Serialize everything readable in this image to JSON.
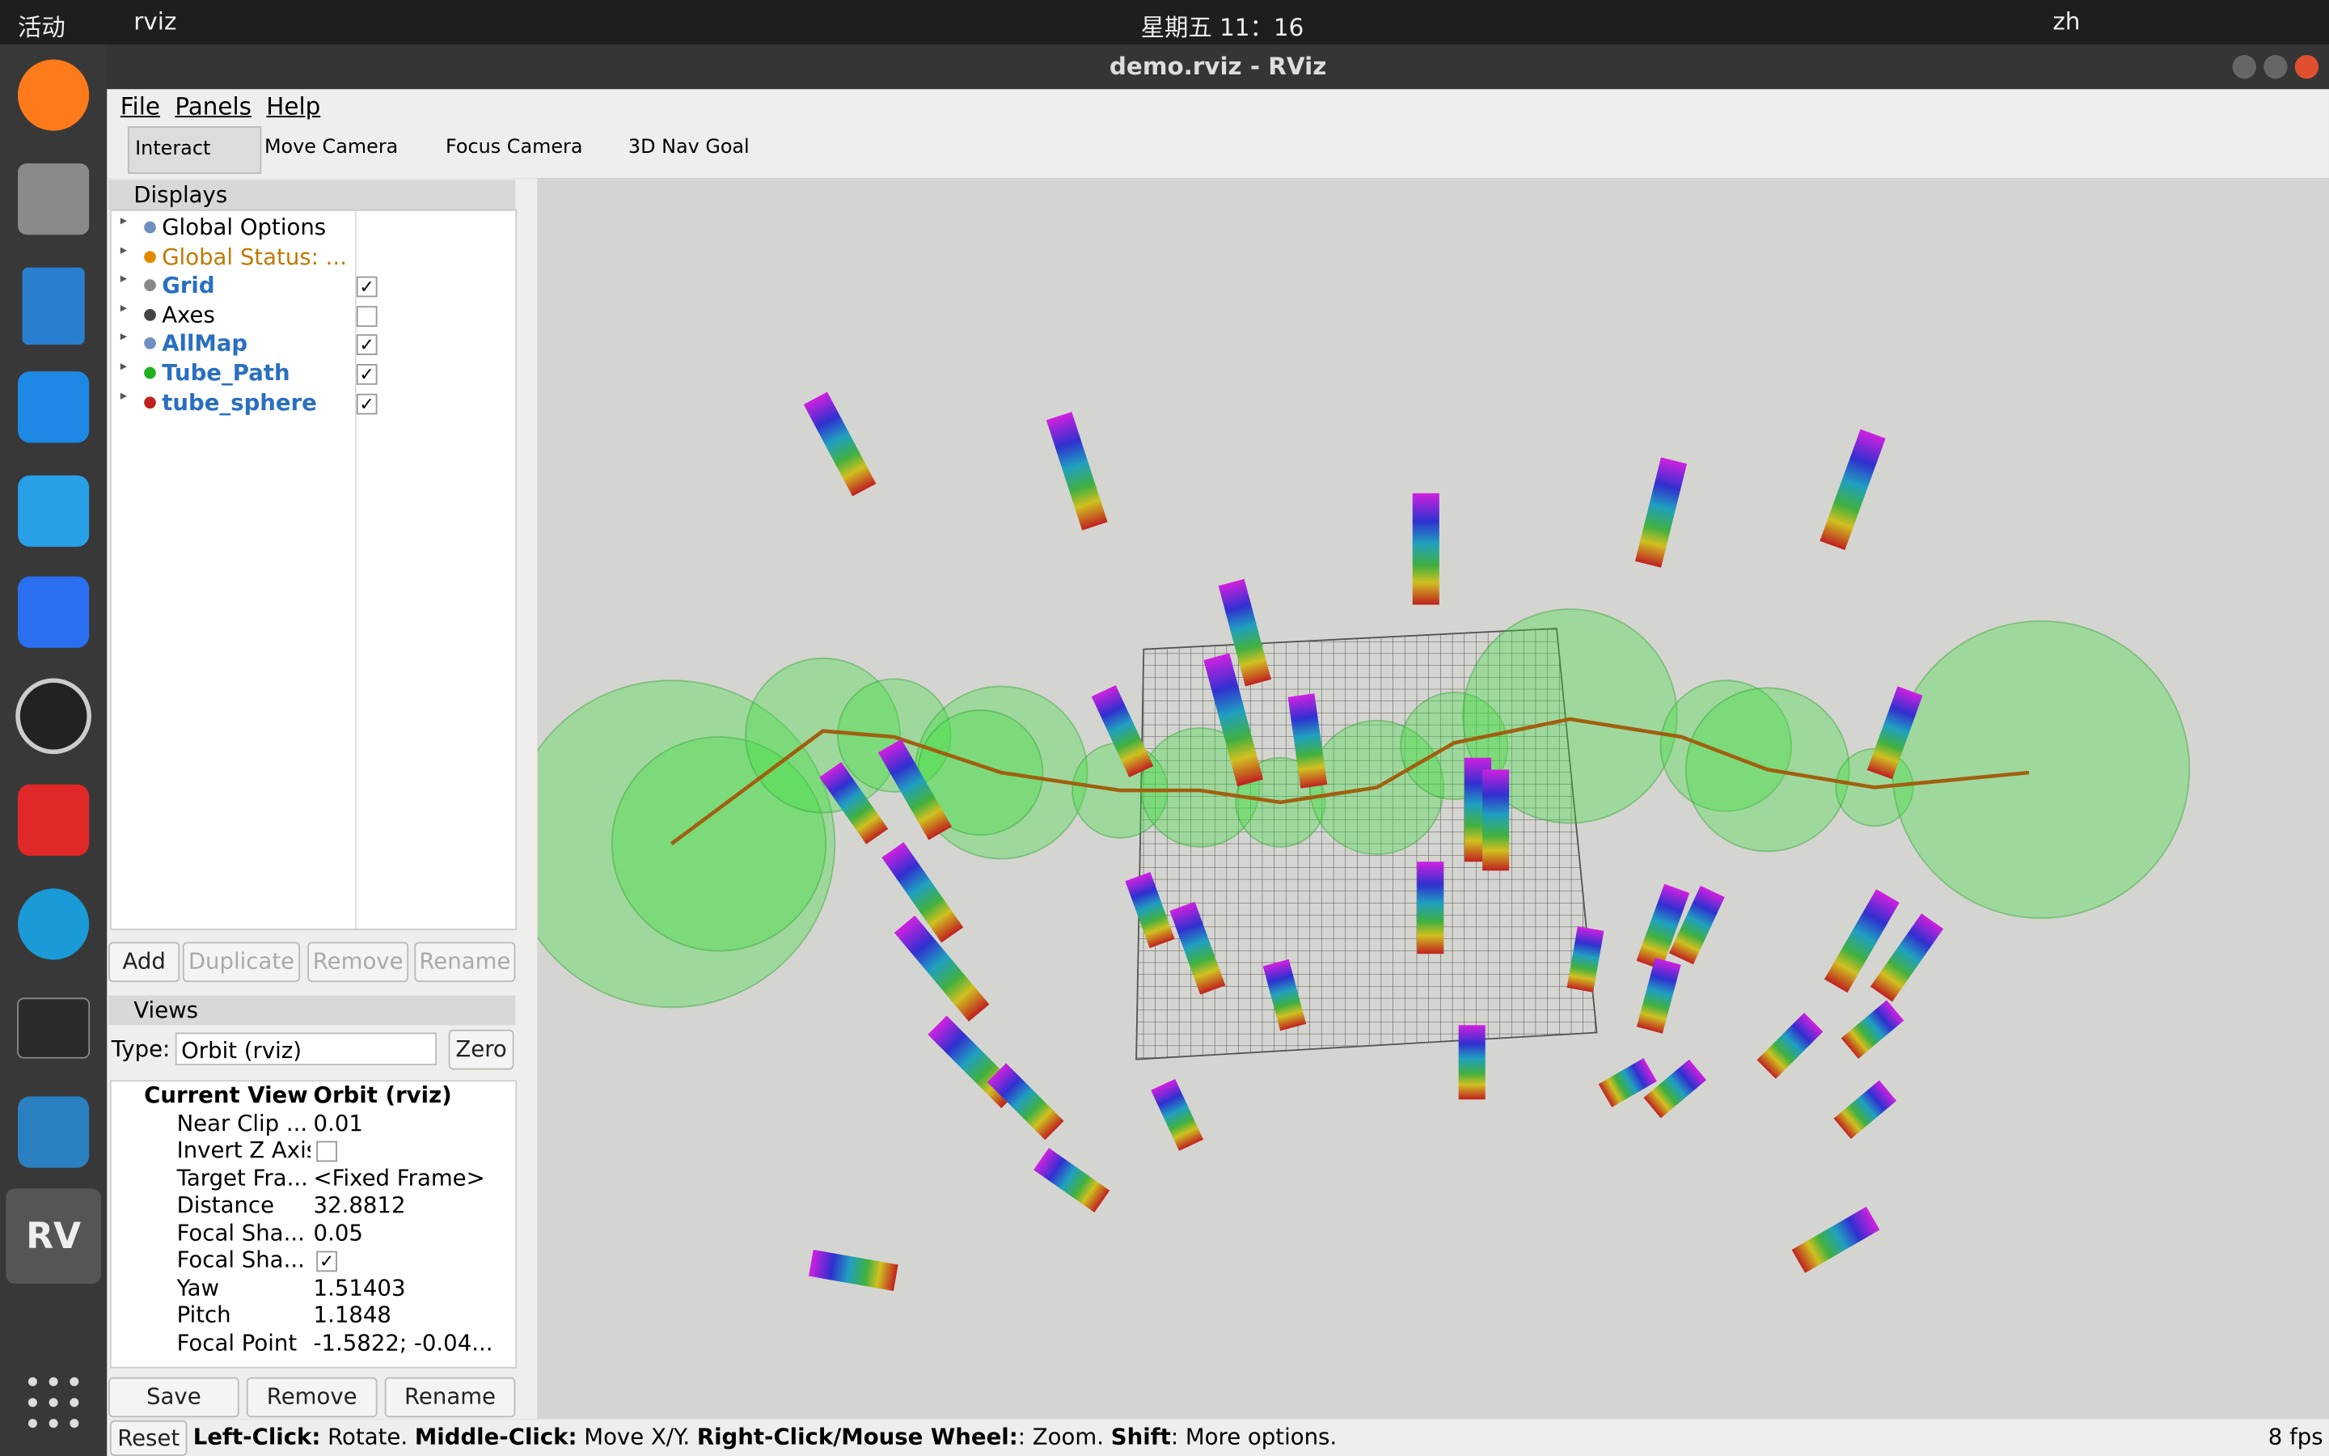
{
  "topbar": {
    "activities": "活动",
    "app": "rviz",
    "clock": "星期五 11：16",
    "lang": "zh"
  },
  "window": {
    "title": "demo.rviz - RViz"
  },
  "menu": [
    "File",
    "Panels",
    "Help"
  ],
  "toolbar": [
    "Interact",
    "Move Camera",
    "Focus Camera",
    "3D Nav Goal"
  ],
  "displays": {
    "title": "Displays",
    "items": [
      {
        "label": "Global Options",
        "color": "#000000",
        "bold": false,
        "icon": "#6f8fc0"
      },
      {
        "label": "Global Status: ...",
        "color": "#c07800",
        "bold": false,
        "icon": "#e08a00"
      },
      {
        "label": "Grid",
        "color": "#2a6fc0",
        "bold": true,
        "icon": "#888888",
        "checked": true
      },
      {
        "label": "Axes",
        "color": "#000000",
        "bold": false,
        "icon": "#444444",
        "checked": false
      },
      {
        "label": "AllMap",
        "color": "#2a6fc0",
        "bold": true,
        "icon": "#6f8fc0",
        "checked": true
      },
      {
        "label": "Tube_Path",
        "color": "#2a6fc0",
        "bold": true,
        "icon": "#20b020",
        "checked": true
      },
      {
        "label": "tube_sphere",
        "color": "#2a6fc0",
        "bold": true,
        "icon": "#c02020",
        "checked": true
      }
    ],
    "buttons": [
      "Add",
      "Duplicate",
      "Remove",
      "Rename"
    ]
  },
  "views": {
    "title": "Views",
    "type_label": "Type:",
    "type_value": "Orbit (rviz)",
    "zero": "Zero",
    "rows": [
      {
        "name": "Current View",
        "value": "Orbit (rviz)",
        "bold": true
      },
      {
        "name": "Near Clip ...",
        "value": "0.01"
      },
      {
        "name": "Invert Z Axis",
        "checked": false
      },
      {
        "name": "Target Fra...",
        "value": "<Fixed Frame>"
      },
      {
        "name": "Distance",
        "value": "32.8812"
      },
      {
        "name": "Focal Sha...",
        "value": "0.05"
      },
      {
        "name": "Focal Sha...",
        "checked": true
      },
      {
        "name": "Yaw",
        "value": "1.51403"
      },
      {
        "name": "Pitch",
        "value": "1.1848"
      },
      {
        "name": "Focal Point",
        "value": "-1.5822; -0.04..."
      }
    ],
    "buttons": [
      "Save",
      "Remove",
      "Rename"
    ]
  },
  "status": {
    "reset": "Reset",
    "hint": [
      {
        "text": "Left-Click:",
        "bold": true
      },
      {
        "text": " Rotate. ",
        "bold": false
      },
      {
        "text": "Middle-Click:",
        "bold": true
      },
      {
        "text": " Move X/Y. ",
        "bold": false
      },
      {
        "text": "Right-Click/Mouse Wheel:",
        "bold": true
      },
      {
        "text": ": Zoom. ",
        "bold": false
      },
      {
        "text": "Shift",
        "bold": true
      },
      {
        "text": ": More options.",
        "bold": false
      }
    ],
    "fps": "8 fps"
  }
}
